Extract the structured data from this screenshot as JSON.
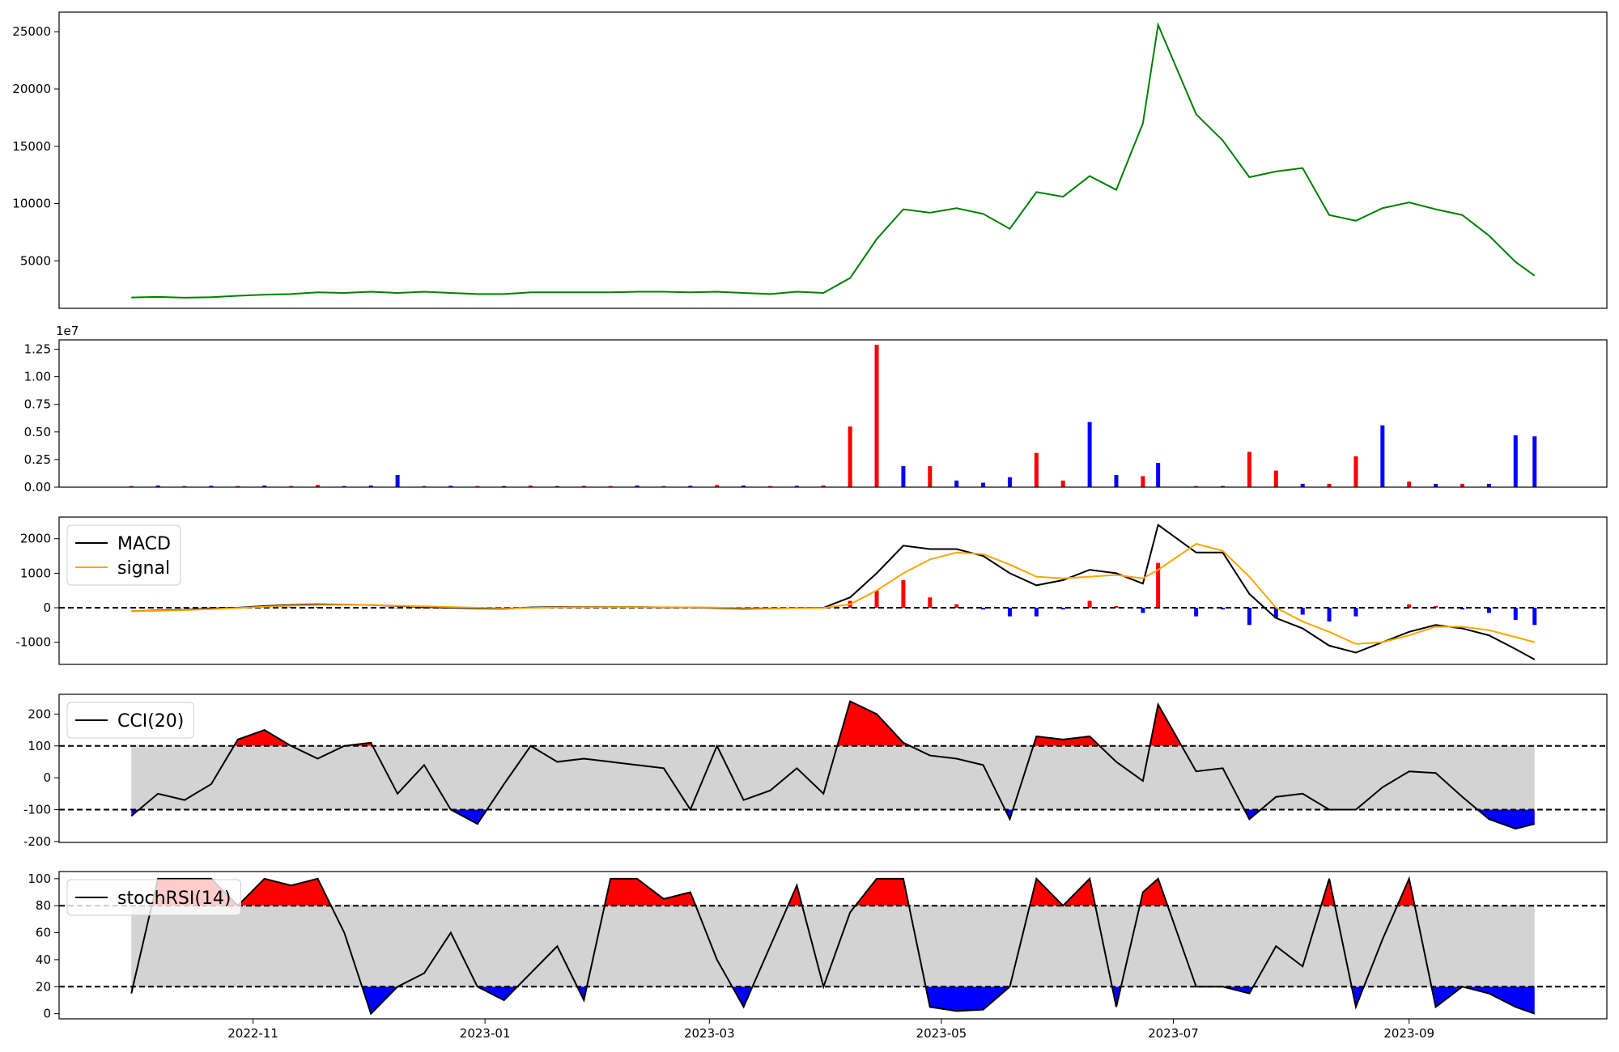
{
  "chart_data": [
    {
      "type": "line",
      "color": "green",
      "x": [
        "2022-09-30",
        "2022-10-07",
        "2022-10-14",
        "2022-10-21",
        "2022-10-28",
        "2022-11-04",
        "2022-11-11",
        "2022-11-18",
        "2022-11-25",
        "2022-12-02",
        "2022-12-09",
        "2022-12-16",
        "2022-12-23",
        "2022-12-30",
        "2023-01-06",
        "2023-01-13",
        "2023-01-20",
        "2023-01-27",
        "2023-02-03",
        "2023-02-10",
        "2023-02-17",
        "2023-02-24",
        "2023-03-03",
        "2023-03-10",
        "2023-03-17",
        "2023-03-24",
        "2023-03-31",
        "2023-04-07",
        "2023-04-14",
        "2023-04-21",
        "2023-04-28",
        "2023-05-05",
        "2023-05-12",
        "2023-05-19",
        "2023-05-26",
        "2023-06-02",
        "2023-06-09",
        "2023-06-16",
        "2023-06-23",
        "2023-06-27",
        "2023-07-07",
        "2023-07-14",
        "2023-07-21",
        "2023-07-28",
        "2023-08-04",
        "2023-08-11",
        "2023-08-18",
        "2023-08-25",
        "2023-09-01",
        "2023-09-08",
        "2023-09-15",
        "2023-09-22",
        "2023-09-29",
        "2023-10-04"
      ],
      "values": [
        1800,
        1850,
        1780,
        1830,
        1950,
        2050,
        2100,
        2250,
        2200,
        2300,
        2200,
        2300,
        2200,
        2100,
        2100,
        2250,
        2250,
        2250,
        2250,
        2300,
        2300,
        2250,
        2300,
        2200,
        2100,
        2300,
        2200,
        3500,
        6900,
        9500,
        9200,
        9600,
        9100,
        7800,
        11000,
        10600,
        12400,
        11200,
        17000,
        25600,
        17800,
        15500,
        12300,
        12800,
        13100,
        9000,
        8500,
        9600,
        10100,
        9500,
        9000,
        7200,
        4900,
        3700
      ],
      "xlim": [
        "2022-09-11",
        "2023-10-23"
      ],
      "ylim": [
        855,
        26712
      ],
      "yticks": [
        5000,
        10000,
        15000,
        20000,
        25000
      ]
    },
    {
      "type": "bar",
      "offset_label": "1e7",
      "x": [
        "2022-09-30",
        "2022-10-07",
        "2022-10-14",
        "2022-10-21",
        "2022-10-28",
        "2022-11-04",
        "2022-11-11",
        "2022-11-18",
        "2022-11-25",
        "2022-12-02",
        "2022-12-09",
        "2022-12-16",
        "2022-12-23",
        "2022-12-30",
        "2023-01-06",
        "2023-01-13",
        "2023-01-20",
        "2023-01-27",
        "2023-02-03",
        "2023-02-10",
        "2023-02-17",
        "2023-02-24",
        "2023-03-03",
        "2023-03-10",
        "2023-03-17",
        "2023-03-24",
        "2023-03-31",
        "2023-04-07",
        "2023-04-14",
        "2023-04-21",
        "2023-04-28",
        "2023-05-05",
        "2023-05-12",
        "2023-05-19",
        "2023-05-26",
        "2023-06-02",
        "2023-06-09",
        "2023-06-16",
        "2023-06-23",
        "2023-06-27",
        "2023-07-07",
        "2023-07-14",
        "2023-07-21",
        "2023-07-28",
        "2023-08-04",
        "2023-08-11",
        "2023-08-18",
        "2023-08-25",
        "2023-09-01",
        "2023-09-08",
        "2023-09-15",
        "2023-09-22",
        "2023-09-29",
        "2023-10-04"
      ],
      "values": [
        100000,
        150000,
        100000,
        120000,
        100000,
        150000,
        100000,
        200000,
        100000,
        150000,
        1100000,
        100000,
        120000,
        100000,
        100000,
        150000,
        100000,
        120000,
        100000,
        150000,
        100000,
        120000,
        200000,
        150000,
        100000,
        120000,
        150000,
        5500000,
        12900000,
        1900000,
        1900000,
        600000,
        400000,
        900000,
        3100000,
        600000,
        5900000,
        1100000,
        1000000,
        2200000,
        100000,
        100000,
        3200000,
        1500000,
        300000,
        300000,
        2800000,
        5600000,
        500000,
        300000,
        300000,
        300000,
        4700000,
        4600000
      ],
      "colors": [
        "red",
        "blue",
        "red",
        "blue",
        "red",
        "blue",
        "red",
        "red",
        "blue",
        "blue",
        "blue",
        "red",
        "blue",
        "red",
        "blue",
        "red",
        "blue",
        "red",
        "red",
        "blue",
        "red",
        "blue",
        "red",
        "blue",
        "red",
        "blue",
        "red",
        "red",
        "red",
        "blue",
        "red",
        "blue",
        "blue",
        "blue",
        "red",
        "red",
        "blue",
        "blue",
        "red",
        "blue",
        "red",
        "blue",
        "red",
        "red",
        "blue",
        "red",
        "red",
        "blue",
        "red",
        "blue",
        "red",
        "blue",
        "blue",
        "blue"
      ],
      "xlim": [
        "2022-09-11",
        "2023-10-23"
      ],
      "ylim": [
        0,
        13340000
      ],
      "yticks": [
        {
          "value": 0,
          "label": "0.00"
        },
        {
          "value": 2500000,
          "label": "0.25"
        },
        {
          "value": 5000000,
          "label": "0.50"
        },
        {
          "value": 7500000,
          "label": "0.75"
        },
        {
          "value": 10000000,
          "label": "1.00"
        },
        {
          "value": 12500000,
          "label": "1.25"
        }
      ]
    },
    {
      "type": "macd",
      "legend": "upper left",
      "hlines": [
        0
      ],
      "x": [
        "2022-09-30",
        "2022-10-07",
        "2022-10-14",
        "2022-10-21",
        "2022-10-28",
        "2022-11-04",
        "2022-11-11",
        "2022-11-18",
        "2022-11-25",
        "2022-12-02",
        "2022-12-09",
        "2022-12-16",
        "2022-12-23",
        "2022-12-30",
        "2023-01-06",
        "2023-01-13",
        "2023-01-20",
        "2023-01-27",
        "2023-02-03",
        "2023-02-10",
        "2023-02-17",
        "2023-02-24",
        "2023-03-03",
        "2023-03-10",
        "2023-03-17",
        "2023-03-24",
        "2023-03-31",
        "2023-04-07",
        "2023-04-14",
        "2023-04-21",
        "2023-04-28",
        "2023-05-05",
        "2023-05-12",
        "2023-05-19",
        "2023-05-26",
        "2023-06-02",
        "2023-06-09",
        "2023-06-16",
        "2023-06-23",
        "2023-06-27",
        "2023-07-07",
        "2023-07-14",
        "2023-07-21",
        "2023-07-28",
        "2023-08-04",
        "2023-08-11",
        "2023-08-18",
        "2023-08-25",
        "2023-09-01",
        "2023-09-08",
        "2023-09-15",
        "2023-09-22",
        "2023-09-29",
        "2023-10-04"
      ],
      "series": [
        {
          "name": "MACD",
          "color": "black",
          "values": [
            -100,
            -80,
            -60,
            -20,
            0,
            50,
            80,
            100,
            90,
            80,
            50,
            20,
            0,
            -20,
            -30,
            10,
            20,
            20,
            20,
            20,
            10,
            10,
            -10,
            -30,
            -20,
            -10,
            0,
            300,
            1000,
            1800,
            1700,
            1700,
            1500,
            1000,
            650,
            800,
            1100,
            1000,
            700,
            2400,
            1600,
            1600,
            400,
            -300,
            -600,
            -1100,
            -1300,
            -1000,
            -700,
            -500,
            -600,
            -800,
            -1200,
            -1500
          ]
        },
        {
          "name": "signal",
          "color": "orange",
          "values": [
            -100,
            -90,
            -70,
            -40,
            -10,
            30,
            60,
            80,
            85,
            80,
            60,
            40,
            20,
            0,
            -15,
            -5,
            10,
            15,
            18,
            18,
            15,
            12,
            5,
            -10,
            -15,
            -12,
            -5,
            100,
            500,
            1000,
            1400,
            1600,
            1550,
            1250,
            900,
            850,
            900,
            950,
            850,
            1100,
            1850,
            1650,
            900,
            0,
            -400,
            -700,
            -1050,
            -1000,
            -800,
            -550,
            -550,
            -650,
            -850,
            -1000
          ]
        }
      ],
      "histogram": {
        "up_color": "red",
        "down_color": "blue",
        "values": [
          0,
          10,
          10,
          20,
          10,
          20,
          20,
          20,
          5,
          0,
          -10,
          -20,
          -20,
          -20,
          -15,
          15,
          10,
          5,
          2,
          2,
          -5,
          -2,
          -15,
          -20,
          -5,
          2,
          5,
          200,
          500,
          800,
          300,
          100,
          -50,
          -250,
          -250,
          -50,
          200,
          50,
          -150,
          1300,
          -250,
          -50,
          -500,
          -300,
          -200,
          -400,
          -250,
          0,
          100,
          50,
          -50,
          -150,
          -350,
          -500
        ]
      },
      "xlim": [
        "2022-09-11",
        "2023-10-23"
      ],
      "ylim": [
        -1642,
        2627
      ],
      "yticks": [
        -1000,
        0,
        1000,
        2000
      ]
    },
    {
      "type": "oscillator",
      "legend": "upper left",
      "hlines": [
        100,
        -100
      ],
      "band_color": "lightgray",
      "above_color": "red",
      "below_color": "blue",
      "x": [
        "2022-09-30",
        "2022-10-07",
        "2022-10-14",
        "2022-10-21",
        "2022-10-28",
        "2022-11-04",
        "2022-11-11",
        "2022-11-18",
        "2022-11-25",
        "2022-12-02",
        "2022-12-09",
        "2022-12-16",
        "2022-12-23",
        "2022-12-30",
        "2023-01-06",
        "2023-01-13",
        "2023-01-20",
        "2023-01-27",
        "2023-02-03",
        "2023-02-10",
        "2023-02-17",
        "2023-02-24",
        "2023-03-03",
        "2023-03-10",
        "2023-03-17",
        "2023-03-24",
        "2023-03-31",
        "2023-04-07",
        "2023-04-14",
        "2023-04-21",
        "2023-04-28",
        "2023-05-05",
        "2023-05-12",
        "2023-05-19",
        "2023-05-26",
        "2023-06-02",
        "2023-06-09",
        "2023-06-16",
        "2023-06-23",
        "2023-06-27",
        "2023-07-07",
        "2023-07-14",
        "2023-07-21",
        "2023-07-28",
        "2023-08-04",
        "2023-08-11",
        "2023-08-18",
        "2023-08-25",
        "2023-09-01",
        "2023-09-08",
        "2023-09-15",
        "2023-09-22",
        "2023-09-29",
        "2023-10-04"
      ],
      "series": [
        {
          "name": "CCI(20)",
          "color": "black",
          "values": [
            -120,
            -50,
            -70,
            -20,
            120,
            150,
            100,
            60,
            100,
            110,
            -50,
            40,
            -100,
            -145,
            -20,
            100,
            50,
            60,
            50,
            40,
            30,
            -100,
            100,
            -70,
            -40,
            30,
            -50,
            240,
            200,
            110,
            70,
            60,
            40,
            -130,
            130,
            120,
            130,
            50,
            -10,
            230,
            20,
            30,
            -130,
            -60,
            -50,
            -100,
            -100,
            -30,
            20,
            15,
            -60,
            -130,
            -160,
            -145
          ]
        }
      ],
      "xlim": [
        "2022-09-11",
        "2023-10-23"
      ],
      "ylim": [
        -203,
        262
      ],
      "yticks": [
        -200,
        -100,
        0,
        100,
        200
      ]
    },
    {
      "type": "oscillator",
      "legend": "upper left",
      "hlines": [
        80,
        20
      ],
      "band_color": "lightgray",
      "above_color": "red",
      "below_color": "blue",
      "x": [
        "2022-09-30",
        "2022-10-07",
        "2022-10-14",
        "2022-10-21",
        "2022-10-28",
        "2022-11-04",
        "2022-11-11",
        "2022-11-18",
        "2022-11-25",
        "2022-12-02",
        "2022-12-09",
        "2022-12-16",
        "2022-12-23",
        "2022-12-30",
        "2023-01-06",
        "2023-01-13",
        "2023-01-20",
        "2023-01-27",
        "2023-02-03",
        "2023-02-10",
        "2023-02-17",
        "2023-02-24",
        "2023-03-03",
        "2023-03-10",
        "2023-03-17",
        "2023-03-24",
        "2023-03-31",
        "2023-04-07",
        "2023-04-14",
        "2023-04-21",
        "2023-04-28",
        "2023-05-05",
        "2023-05-12",
        "2023-05-19",
        "2023-05-26",
        "2023-06-02",
        "2023-06-09",
        "2023-06-16",
        "2023-06-23",
        "2023-06-27",
        "2023-07-07",
        "2023-07-14",
        "2023-07-21",
        "2023-07-28",
        "2023-08-04",
        "2023-08-11",
        "2023-08-18",
        "2023-08-25",
        "2023-09-01",
        "2023-09-08",
        "2023-09-15",
        "2023-09-22",
        "2023-09-29",
        "2023-10-04"
      ],
      "series": [
        {
          "name": "stochRSI(14)",
          "color": "black",
          "values": [
            15,
            100,
            100,
            100,
            80,
            100,
            95,
            100,
            60,
            0,
            20,
            30,
            60,
            20,
            10,
            30,
            50,
            10,
            100,
            100,
            85,
            90,
            40,
            5,
            50,
            95,
            20,
            75,
            100,
            100,
            5,
            2,
            3,
            20,
            100,
            80,
            100,
            5,
            90,
            100,
            20,
            20,
            15,
            50,
            35,
            100,
            5,
            55,
            100,
            5,
            20,
            15,
            5,
            0
          ]
        }
      ],
      "xlim": [
        "2022-09-11",
        "2023-10-23"
      ],
      "ylim": [
        -3.8,
        105.3
      ],
      "yticks": [
        0,
        20,
        40,
        60,
        80,
        100
      ],
      "xticks": [
        {
          "value": "2022-11-01",
          "label": "2022-11"
        },
        {
          "value": "2023-01-01",
          "label": "2023-01"
        },
        {
          "value": "2023-03-01",
          "label": "2023-03"
        },
        {
          "value": "2023-05-01",
          "label": "2023-05"
        },
        {
          "value": "2023-07-01",
          "label": "2023-07"
        },
        {
          "value": "2023-09-01",
          "label": "2023-09"
        }
      ]
    }
  ]
}
